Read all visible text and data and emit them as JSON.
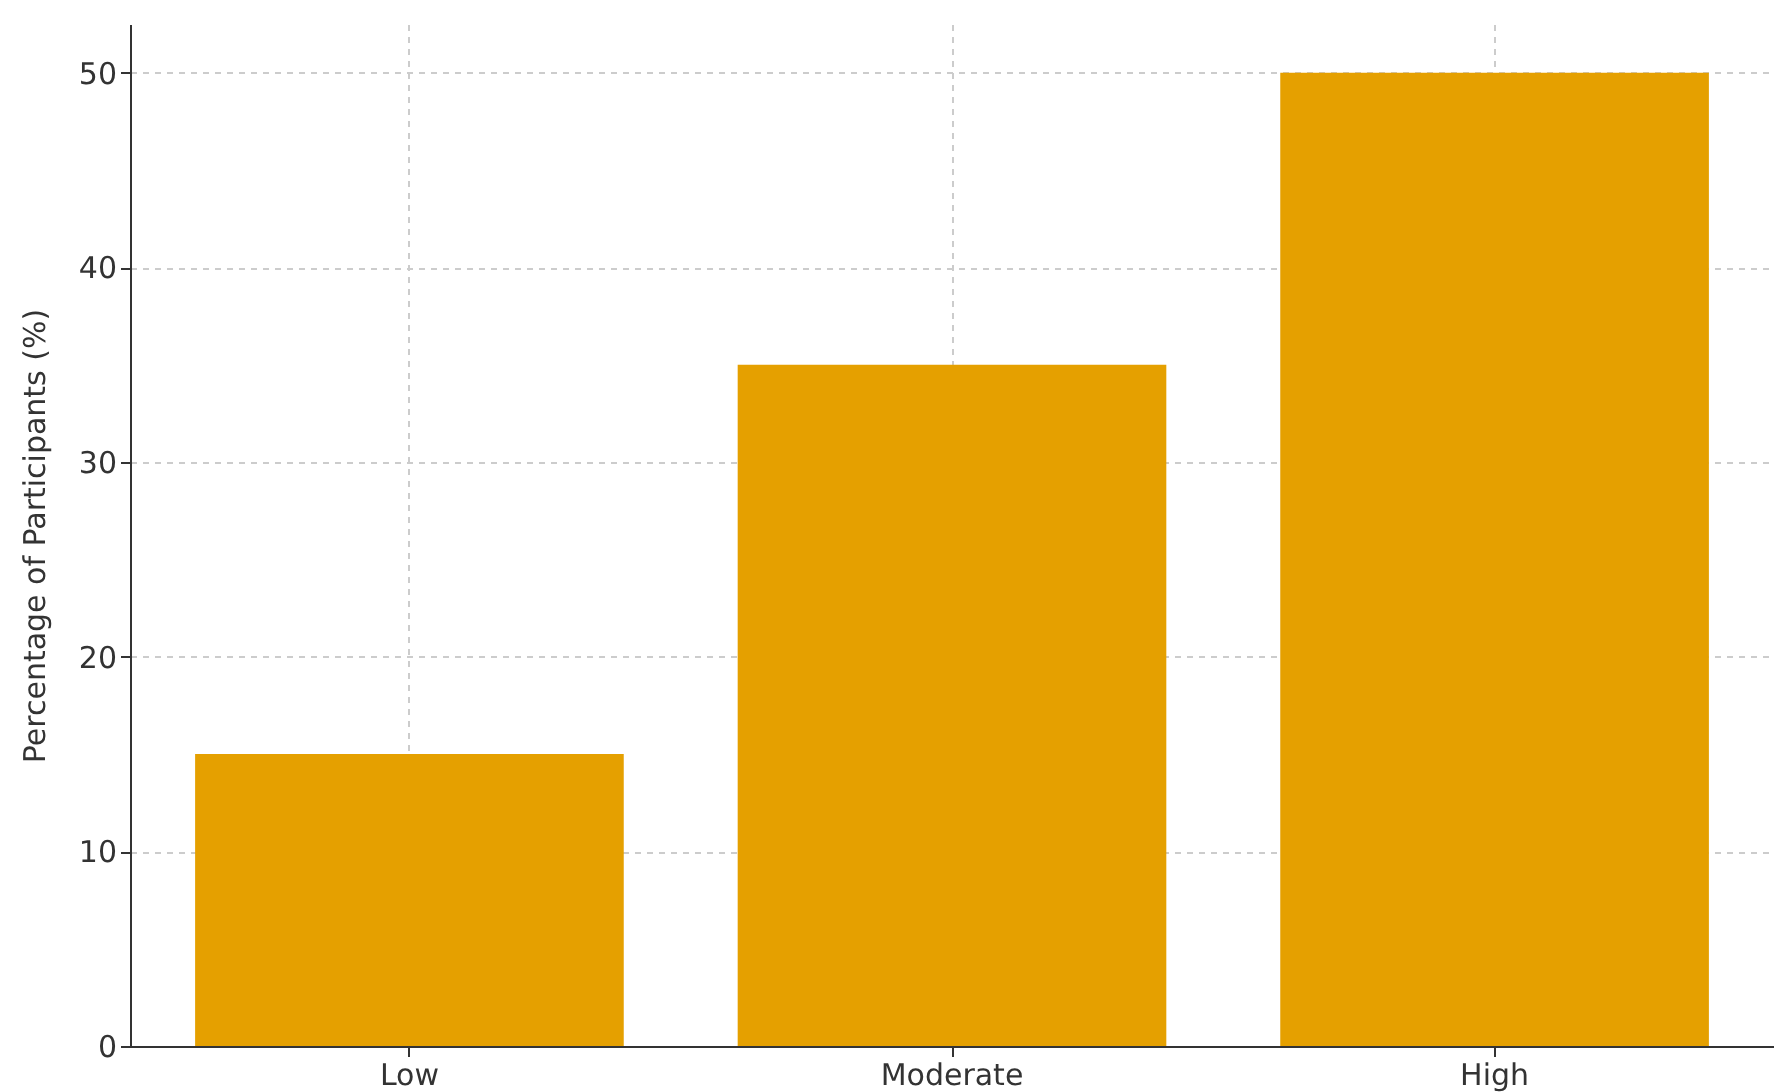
{
  "chart_data": {
    "type": "bar",
    "ylabel": "Percentage of Participants (%)",
    "categories": [
      "Low",
      "Moderate",
      "High"
    ],
    "values": [
      15,
      35,
      50
    ],
    "color": "#e5a000",
    "ylim": [
      0,
      52.5
    ],
    "yticks": [
      0,
      10,
      20,
      30,
      40,
      50
    ],
    "grid": true
  }
}
